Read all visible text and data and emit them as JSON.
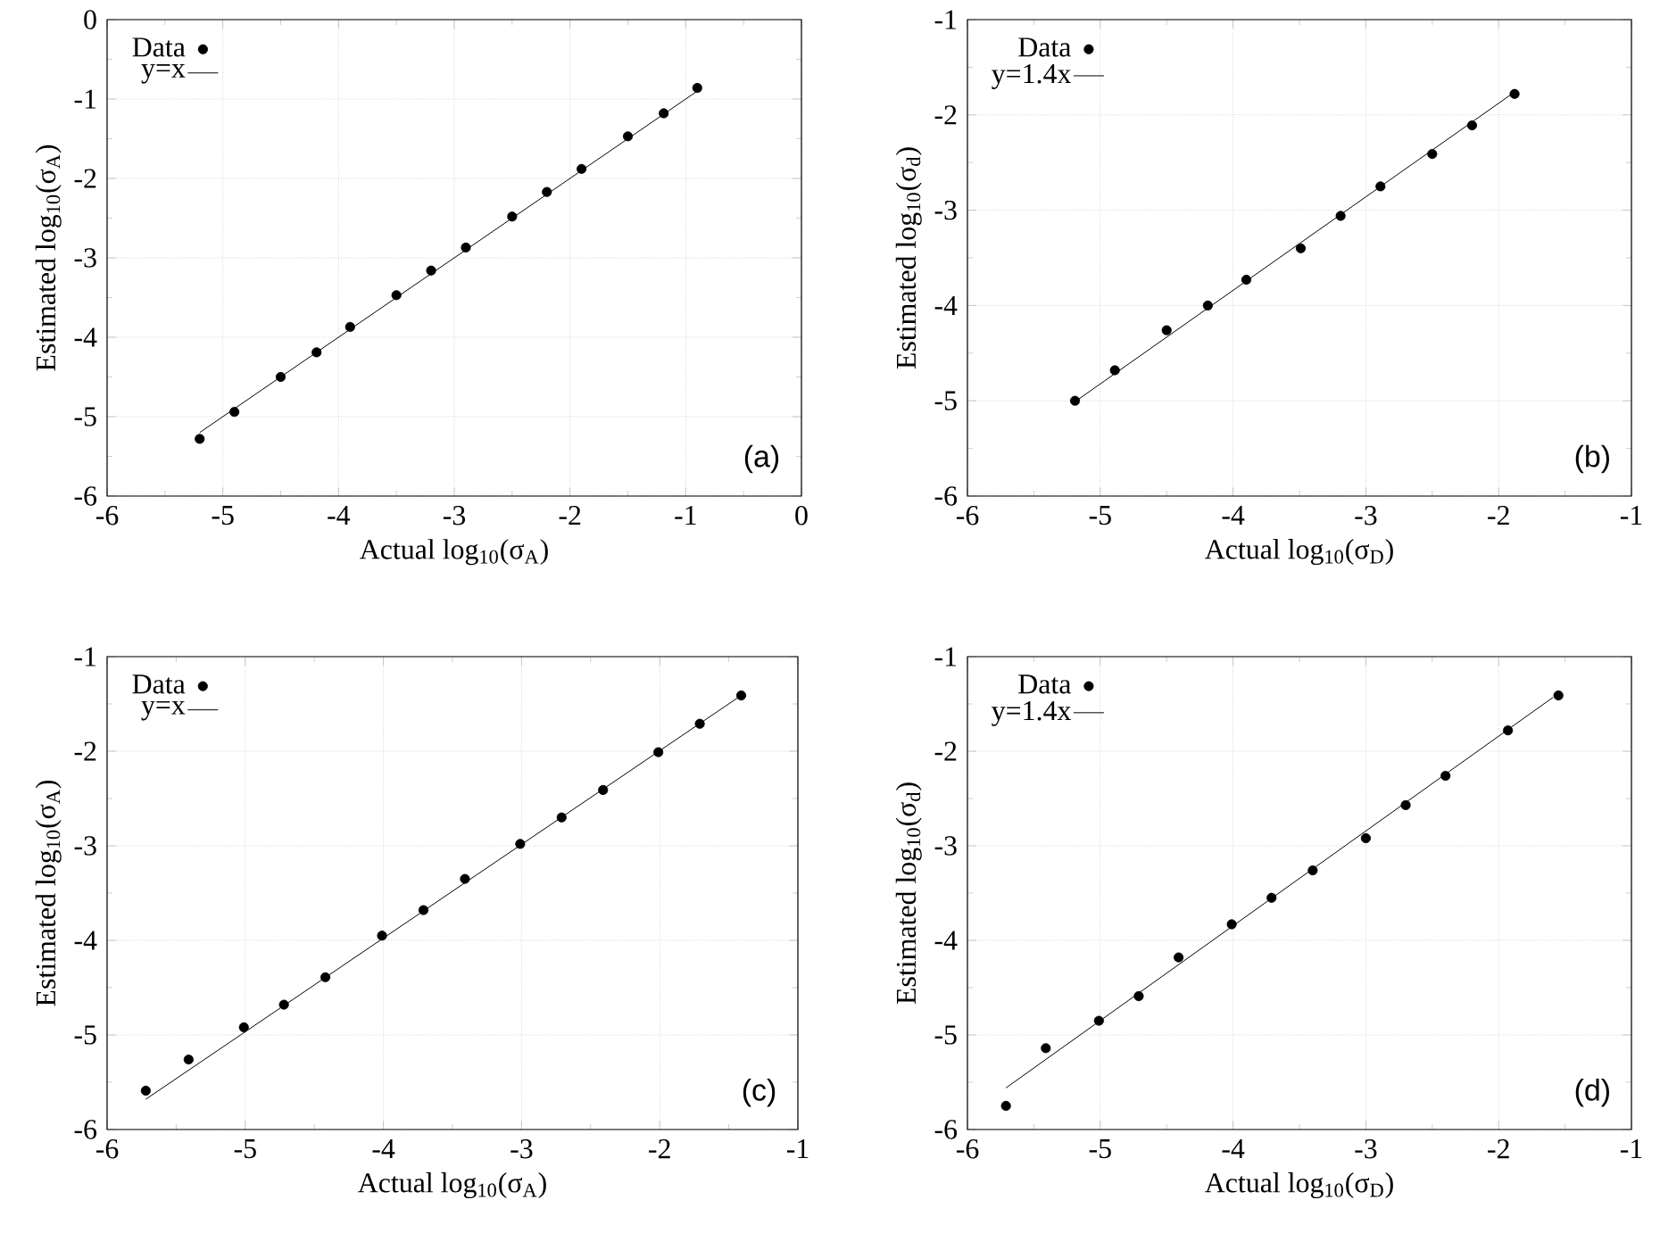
{
  "chart_data": [
    {
      "type": "scatter",
      "xlabel": "Actual log$_{10}$(σ$_{A}$)",
      "ylabel": "Estimated log$_{10}$(σ$_{A}$)",
      "xlim": [
        -6,
        0
      ],
      "ylim": [
        -6,
        0
      ],
      "xticks": [
        -6,
        -5,
        -4,
        -3,
        -2,
        -1,
        0
      ],
      "yticks": [
        -6,
        -5,
        -4,
        -3,
        -2,
        -1,
        0
      ],
      "grid": true,
      "legend": "top left",
      "annotations": [
        "(a)"
      ],
      "series": [
        {
          "name": "Data",
          "marker": "circle",
          "color": "#000000",
          "x": [
            -5.2,
            -4.9,
            -4.5,
            -4.19,
            -3.9,
            -3.5,
            -3.2,
            -2.9,
            -2.5,
            -2.2,
            -1.9,
            -1.5,
            -1.19,
            -0.9
          ],
          "values": [
            -5.28,
            -4.94,
            -4.5,
            -4.19,
            -3.87,
            -3.47,
            -3.16,
            -2.87,
            -2.48,
            -2.17,
            -1.88,
            -1.47,
            -1.18,
            -0.86
          ]
        },
        {
          "name": "y=x",
          "type": "line",
          "marker": "none",
          "color": "#000000",
          "x": [
            -5.2,
            -0.9
          ],
          "values": [
            -5.2,
            -0.9
          ]
        }
      ]
    },
    {
      "type": "scatter",
      "xlabel": "Actual log$_{10}$(σ$_{D}$)",
      "ylabel": "Estimated log$_{10}$(σ$_{d}$)",
      "xlim": [
        -6,
        -1
      ],
      "ylim": [
        -6,
        -1
      ],
      "xticks": [
        -6,
        -5,
        -4,
        -3,
        -2,
        -1
      ],
      "yticks": [
        -6,
        -5,
        -4,
        -3,
        -2,
        -1
      ],
      "grid": true,
      "legend": "top left",
      "annotations": [
        "(b)"
      ],
      "series": [
        {
          "name": "Data",
          "marker": "circle",
          "color": "#000000",
          "x": [
            -5.19,
            -4.89,
            -4.5,
            -4.19,
            -3.9,
            -3.49,
            -3.19,
            -2.89,
            -2.5,
            -2.2,
            -1.88
          ],
          "values": [
            -5.0,
            -4.68,
            -4.26,
            -4.0,
            -3.73,
            -3.4,
            -3.06,
            -2.75,
            -2.41,
            -2.11,
            -1.78
          ]
        },
        {
          "name": "y=1.4x",
          "type": "line",
          "marker": "none",
          "color": "#000000",
          "x": [
            -5.17,
            -1.89
          ],
          "values": [
            -4.99,
            -1.77
          ]
        }
      ]
    },
    {
      "type": "scatter",
      "xlabel": "Actual log$_{10}$(σ$_{A}$)",
      "ylabel": "Estimated log$_{10}$(σ$_{A}$)",
      "xlim": [
        -6,
        -1
      ],
      "ylim": [
        -6,
        -1
      ],
      "xticks": [
        -6,
        -5,
        -4,
        -3,
        -2,
        -1
      ],
      "yticks": [
        -6,
        -5,
        -4,
        -3,
        -2,
        -1
      ],
      "grid": true,
      "legend": "top left",
      "annotations": [
        "(c)"
      ],
      "series": [
        {
          "name": "Data",
          "marker": "circle",
          "color": "#000000",
          "x": [
            -5.72,
            -5.41,
            -5.01,
            -4.72,
            -4.42,
            -4.01,
            -3.71,
            -3.41,
            -3.01,
            -2.71,
            -2.41,
            -2.01,
            -1.71,
            -1.41
          ],
          "values": [
            -5.59,
            -5.26,
            -4.92,
            -4.68,
            -4.39,
            -3.95,
            -3.68,
            -3.35,
            -2.98,
            -2.7,
            -2.41,
            -2.01,
            -1.71,
            -1.41
          ]
        },
        {
          "name": "y=x",
          "type": "line",
          "marker": "none",
          "color": "#000000",
          "x": [
            -5.72,
            -1.41
          ],
          "values": [
            -5.68,
            -1.41
          ]
        }
      ]
    },
    {
      "type": "scatter",
      "xlabel": "Actual log$_{10}$(σ$_{D}$)",
      "ylabel": "Estimated log$_{10}$(σ$_{d}$)",
      "xlim": [
        -6,
        -1
      ],
      "ylim": [
        -6,
        -1
      ],
      "xticks": [
        -6,
        -5,
        -4,
        -3,
        -2,
        -1
      ],
      "yticks": [
        -6,
        -5,
        -4,
        -3,
        -2,
        -1
      ],
      "grid": true,
      "legend": "top left",
      "annotations": [
        "(d)"
      ],
      "series": [
        {
          "name": "Data",
          "marker": "circle",
          "color": "#000000",
          "x": [
            -5.71,
            -5.41,
            -5.01,
            -4.71,
            -4.41,
            -4.01,
            -3.71,
            -3.4,
            -3.0,
            -2.7,
            -2.4,
            -1.93,
            -1.55
          ],
          "values": [
            -5.75,
            -5.14,
            -4.85,
            -4.59,
            -4.18,
            -3.83,
            -3.55,
            -3.26,
            -2.92,
            -2.57,
            -2.26,
            -1.78,
            -1.41
          ]
        },
        {
          "name": "y=1.4x",
          "type": "line",
          "marker": "none",
          "color": "#000000",
          "x": [
            -5.71,
            -1.59
          ],
          "values": [
            -5.56,
            -1.43
          ]
        }
      ]
    }
  ]
}
